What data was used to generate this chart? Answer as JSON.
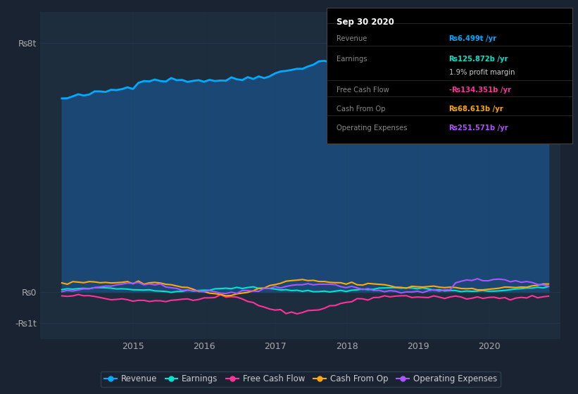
{
  "background_color": "#1a2332",
  "plot_bg_color": "#1e2d3d",
  "grid_color": "#2a3f55",
  "yticks_labels": [
    "₨8t",
    "₨0",
    "-₨1t"
  ],
  "yticks_values": [
    8000,
    0,
    -1000
  ],
  "ylim": [
    -1500,
    9000
  ],
  "xlim_start": 2013.7,
  "xlim_end": 2021.0,
  "xtick_years": [
    2015,
    2016,
    2017,
    2018,
    2019,
    2020
  ],
  "series": {
    "Revenue": {
      "color": "#00aaff",
      "fill_color": "#1a4a7a",
      "line_width": 2.0
    },
    "Earnings": {
      "color": "#00e5cc",
      "line_width": 1.5
    },
    "Free Cash Flow": {
      "color": "#ff3399",
      "line_width": 1.5
    },
    "Cash From Op": {
      "color": "#ffaa00",
      "line_width": 1.5
    },
    "Operating Expenses": {
      "color": "#aa55ff",
      "line_width": 1.5
    }
  },
  "legend_items": [
    "Revenue",
    "Earnings",
    "Free Cash Flow",
    "Cash From Op",
    "Operating Expenses"
  ],
  "legend_colors": [
    "#00aaff",
    "#00e5cc",
    "#ff3399",
    "#ffaa00",
    "#aa55ff"
  ],
  "tooltip": {
    "title": "Sep 30 2020",
    "rows": [
      {
        "label": "Revenue",
        "value": "₨6.499t /yr",
        "value_color": "#00aaff",
        "bold": true
      },
      {
        "label": "Earnings",
        "value": "₨125.872b /yr",
        "value_color": "#00e5cc",
        "bold": true
      },
      {
        "label": "",
        "value": "1.9% profit margin",
        "value_color": "#cccccc",
        "bold": false
      },
      {
        "label": "Free Cash Flow",
        "value": "-₨134.351b /yr",
        "value_color": "#ff3399",
        "bold": true
      },
      {
        "label": "Cash From Op",
        "value": "₨68.613b /yr",
        "value_color": "#ffaa00",
        "bold": true
      },
      {
        "label": "Operating Expenses",
        "value": "₨251.571b /yr",
        "value_color": "#aa55ff",
        "bold": true
      }
    ]
  }
}
